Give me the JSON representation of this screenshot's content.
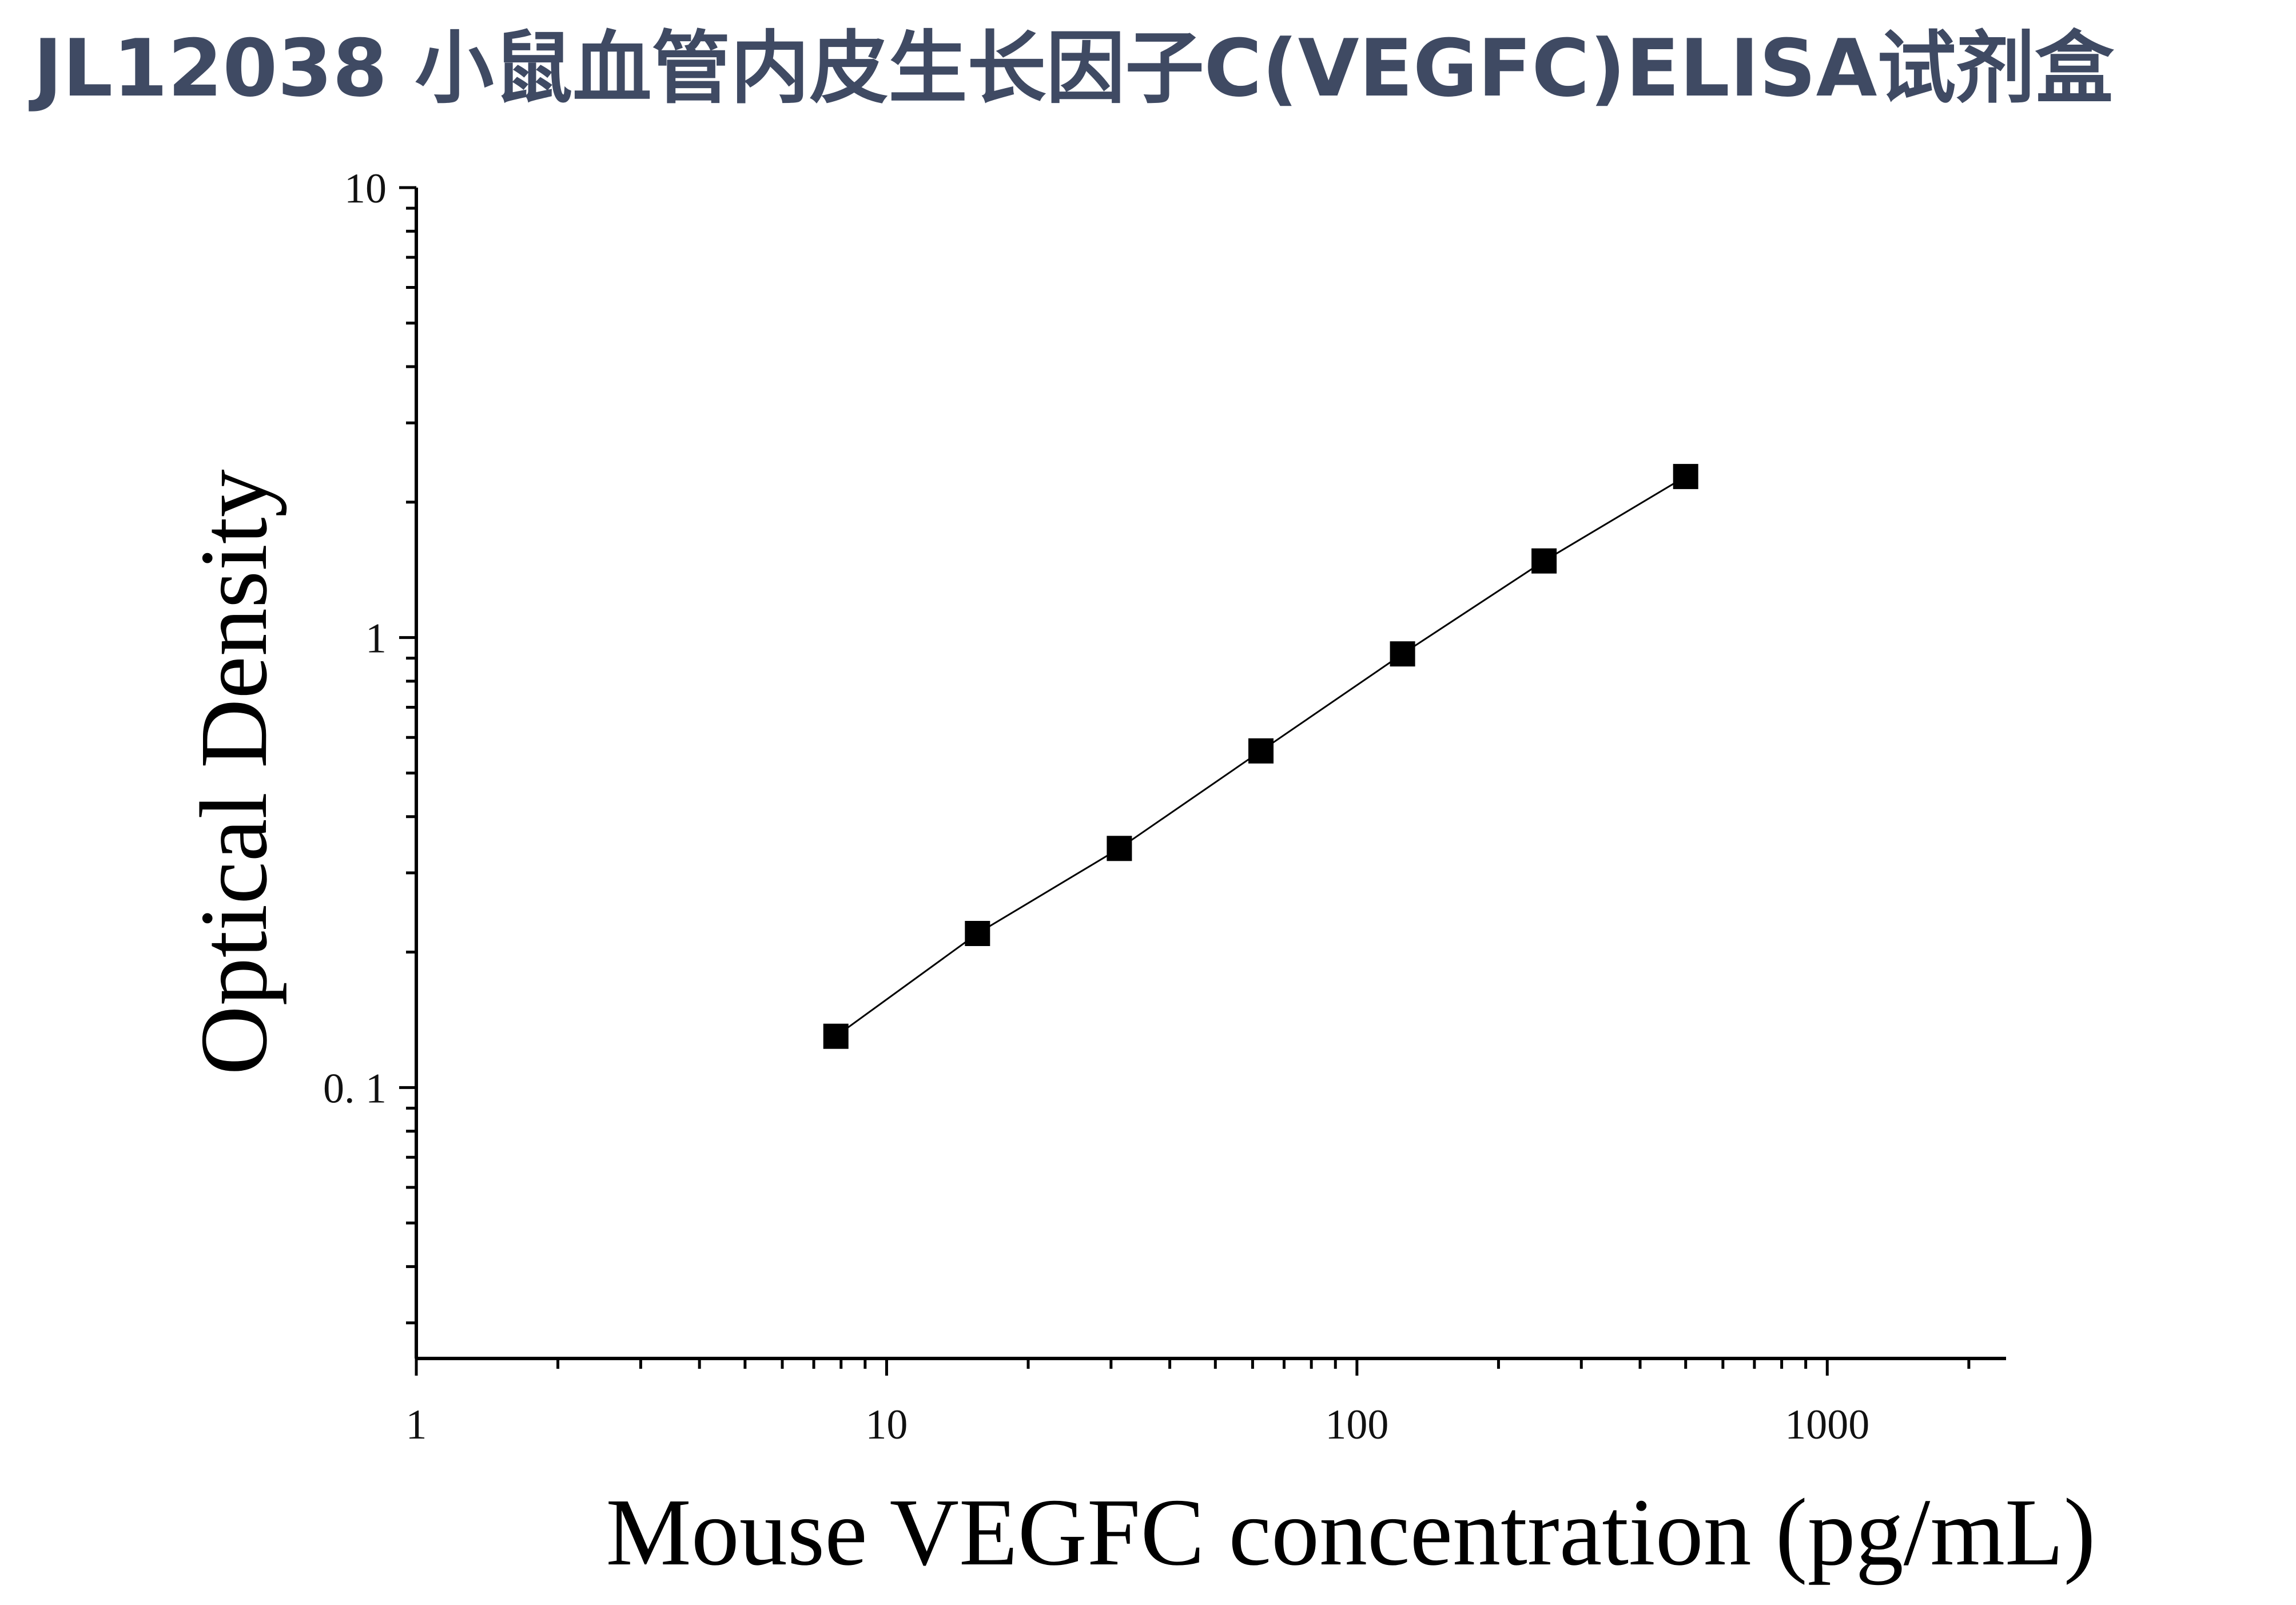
{
  "page": {
    "title": "JL12038 小鼠血管内皮生长因子C(VEGFC)ELISA试剂盒",
    "title_color": "#3f4a63"
  },
  "chart_data": {
    "type": "scatter",
    "xlabel": "Mouse VEGFC concentration (pg/mL)",
    "ylabel": "Optical Density",
    "x_scale": "log",
    "y_scale": "log",
    "xlim": [
      1,
      2400
    ],
    "ylim": [
      0.025,
      10
    ],
    "x_ticks": [
      {
        "value": 1,
        "label": "1"
      },
      {
        "value": 10,
        "label": "10"
      },
      {
        "value": 100,
        "label": "100"
      },
      {
        "value": 1000,
        "label": "1000"
      }
    ],
    "y_ticks": [
      {
        "value": 10,
        "label": "10"
      },
      {
        "value": 1,
        "label": "1"
      },
      {
        "value": 0.1,
        "label": "0. 1"
      }
    ],
    "grid": false,
    "legend": "none",
    "marker": "square",
    "marker_color": "#000000",
    "line_color": "#000000",
    "series": [
      {
        "x": [
          7.8,
          15.6,
          31.25,
          62.5,
          125,
          250,
          500
        ],
        "y": [
          0.13,
          0.22,
          0.34,
          0.56,
          0.92,
          1.48,
          2.28
        ]
      }
    ]
  }
}
